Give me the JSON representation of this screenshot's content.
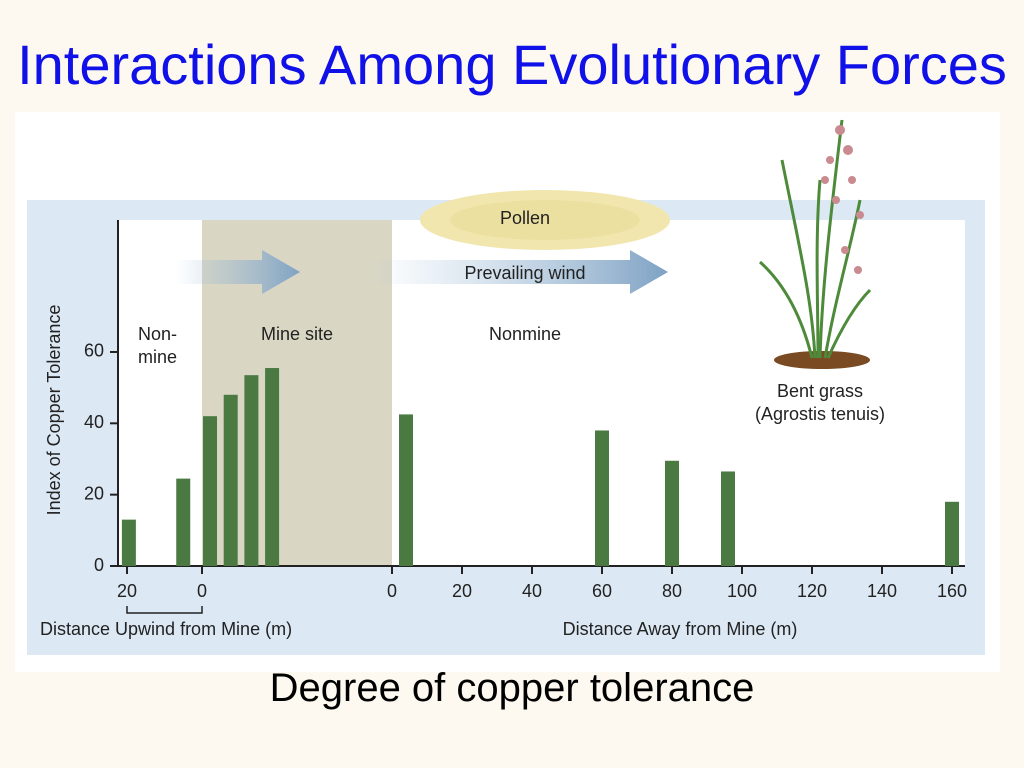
{
  "title": "Interactions Among Evolutionary Forces",
  "caption": "Degree of copper tolerance",
  "chart_data": {
    "type": "bar",
    "ylabel": "Index of Copper Tolerance",
    "ylim": [
      0,
      97
    ],
    "yticks": [
      0,
      20,
      40,
      60
    ],
    "color": "#4a7a42",
    "region_labels": {
      "upwind": [
        "Non-",
        "mine"
      ],
      "mine": "Mine site",
      "away": "Nonmine"
    },
    "annotations": {
      "pollen": "Pollen",
      "wind": "Prevailing wind",
      "plant": "Bent grass",
      "species": "(Agrostis tenuis)"
    },
    "upwind": {
      "xlabel": "Distance Upwind from Mine (m)",
      "xlim": [
        20,
        0
      ],
      "xticks": [
        20,
        0
      ],
      "x": [
        19.5,
        5
      ],
      "values": [
        13,
        24.5
      ]
    },
    "mine": {
      "values": [
        42,
        48,
        53.5,
        55.5
      ]
    },
    "away": {
      "xlabel": "Distance Away from Mine (m)",
      "xlim": [
        0,
        160
      ],
      "xticks": [
        0,
        20,
        40,
        60,
        80,
        100,
        120,
        140,
        160
      ],
      "x": [
        4,
        60,
        80,
        96,
        160
      ],
      "values": [
        42.5,
        38,
        29.5,
        26.5,
        18
      ]
    }
  }
}
